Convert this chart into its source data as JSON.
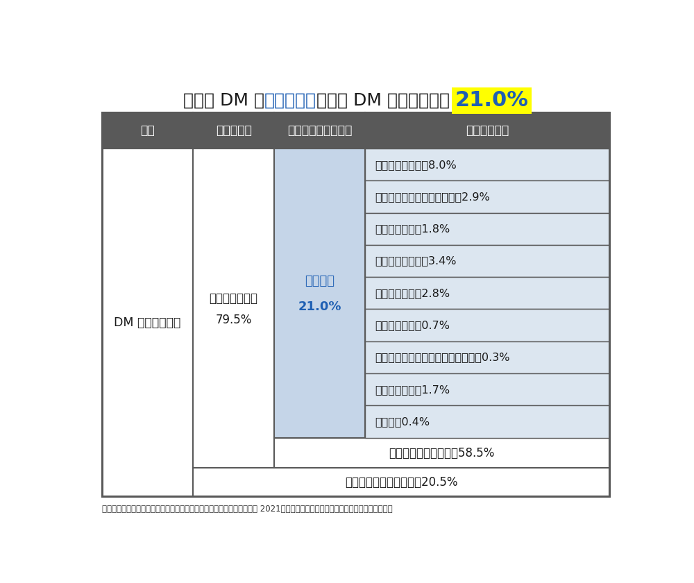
{
  "header_bg": "#595959",
  "header_text_color": "#ffffff",
  "header_labels": [
    "受取",
    "開封・閉読",
    "開封・閉読後の行動",
    "行動した内容"
  ],
  "col1_label": "DM を受け取った",
  "col2_line1": "開封・閉読した",
  "col2_line2": "79.5%",
  "col3_line1": "行動した",
  "col3_line2": "21.0%",
  "col3_text_color": "#1e5fb3",
  "col3_bg": "#c5d5e8",
  "action_items": [
    "ネットで調べた　8.0%",
    "家族・友人との話題にした　2.9%",
    "店に出かけた　1.8%",
    "購入・利用した　3.4%",
    "資料請求した　2.8%",
    "問い合わせた　0.7%",
    "ネット上の掲示板等に書き込んだ　0.3%",
    "会員登録した　1.7%",
    "その他　0.4%"
  ],
  "action_bg": "#dce6f0",
  "no_action_label": "特に何もしていない　58.5%",
  "not_opened_label": "開封・閉読しなかった　20.5%",
  "border_color": "#595959",
  "title_prefix": "自分宛 DM の",
  "title_blue": "行動嗚起率",
  "title_suffix": "は受取 DM 総数に対して ",
  "title_highlight": "21.0%",
  "title_color_normal": "#1a1a1a",
  "title_color_blue": "#1e5fb3",
  "title_highlight_bg": "#ffff00",
  "title_fontsize": 18,
  "title_highlight_fontsize": 22,
  "footnote": "出典：一般社団法人日本ダイレクトメール協会『ＤＭメディア実態調査 2021』調査報告書要約版」をもとに当社が独自に作成。",
  "bg_color": "#ffffff"
}
